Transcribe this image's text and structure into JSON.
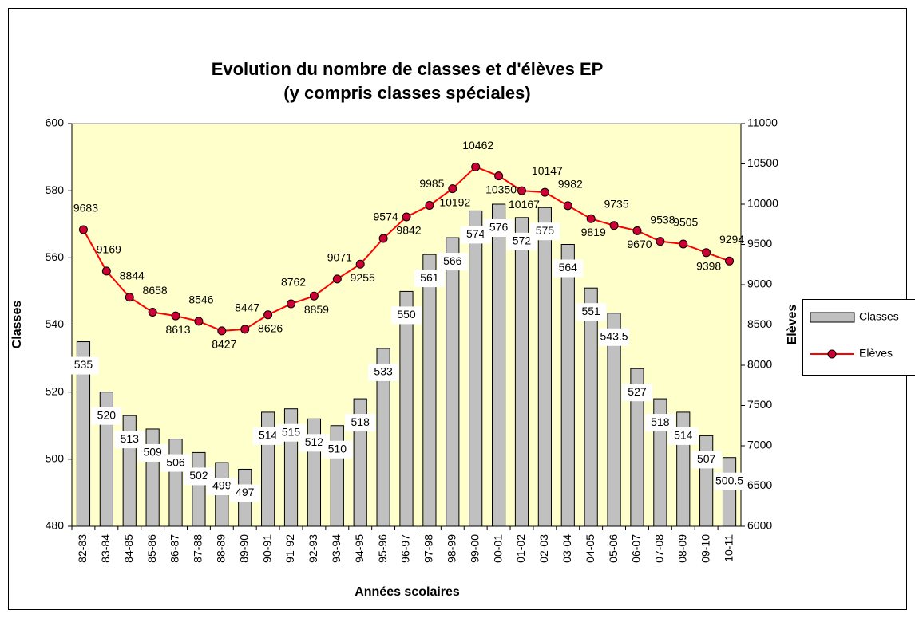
{
  "chart_data": {
    "type": "bar-line",
    "title": "Evolution du nombre de classes et d'élèves EP",
    "subtitle": "(y compris classes spéciales)",
    "x_label": "Années scolaires",
    "y_label": "Classes",
    "y2_label": "Elèves",
    "categories": [
      "82-83",
      "83-84",
      "84-85",
      "85-86",
      "86-87",
      "87-88",
      "88-89",
      "89-90",
      "90-91",
      "91-92",
      "92-93",
      "93-94",
      "94-95",
      "95-96",
      "96-97",
      "97-98",
      "98-99",
      "99-00",
      "00-01",
      "01-02",
      "02-03",
      "03-04",
      "04-05",
      "05-06",
      "06-07",
      "07-08",
      "08-09",
      "09-10",
      "10-11"
    ],
    "series": [
      {
        "name": "Classes",
        "type": "bar",
        "color": "#c0c0c0",
        "axis": "y",
        "values": [
          535,
          520,
          513,
          509,
          506,
          502,
          499,
          497,
          514,
          515,
          512,
          510,
          518,
          533,
          550,
          561,
          566,
          574,
          576,
          572,
          575,
          564,
          551,
          543.5,
          527,
          518,
          514,
          507,
          500.5
        ]
      },
      {
        "name": "Elèves",
        "type": "line",
        "color": "#ff0000",
        "marker_color": "#cc0033",
        "axis": "y2",
        "values": [
          9683,
          9169,
          8844,
          8658,
          8613,
          8546,
          8427,
          8447,
          8626,
          8762,
          8859,
          9071,
          9255,
          9574,
          9842,
          9985,
          10192,
          10462,
          10350,
          10167,
          10147,
          9982,
          9819,
          9735,
          9670,
          9538,
          9505,
          9398,
          9294
        ]
      }
    ],
    "ylim": [
      480,
      600
    ],
    "yticks": [
      480,
      500,
      520,
      540,
      560,
      580,
      600
    ],
    "y2lim": [
      6000,
      11000
    ],
    "y2ticks": [
      6000,
      6500,
      7000,
      7500,
      8000,
      8500,
      9000,
      9500,
      10000,
      10500,
      11000
    ],
    "plot_background": "#ffffcc",
    "legend": "right"
  }
}
